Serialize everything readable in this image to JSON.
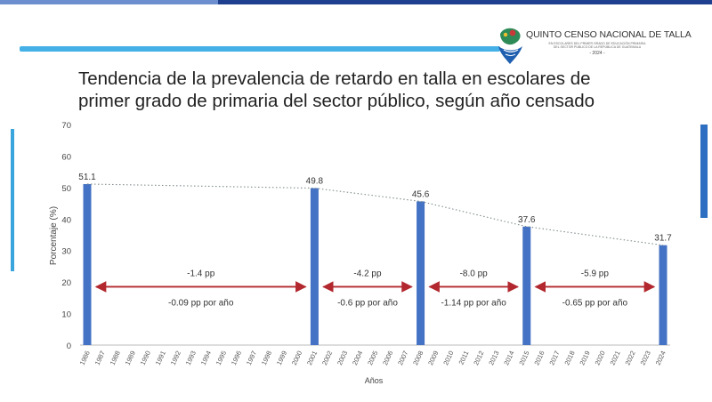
{
  "header": {
    "logo_title": "QUINTO CENSO NACIONAL DE TALLA",
    "logo_subtitle_1": "EN ESCOLARES DEL PRIMER GRADO DE EDUCACIÓN PRIMARIA",
    "logo_subtitle_2": "DEL SECTOR PÚBLICO DE LA REPÚBLICA DE GUATEMALA",
    "logo_year": "- 2024 -",
    "accent_color": "#45b0e6"
  },
  "chart_data": {
    "type": "bar",
    "title_line1": "Tendencia de la prevalencia de retardo en talla en escolares de",
    "title_line2": "primer grado de primaria del sector público, según año censado",
    "xlabel": "Años",
    "ylabel": "Porcentaje (%)",
    "ylim": [
      0,
      70
    ],
    "yticks": [
      "0",
      "10",
      "20",
      "30",
      "40",
      "50",
      "60",
      "70"
    ],
    "categories": [
      "1986",
      "1987",
      "1988",
      "1989",
      "1990",
      "1991",
      "1992",
      "1993",
      "1994",
      "1995",
      "1996",
      "1997",
      "1998",
      "1999",
      "2000",
      "2001",
      "2002",
      "2003",
      "2004",
      "2005",
      "2006",
      "2007",
      "2008",
      "2009",
      "2010",
      "2011",
      "2012",
      "2013",
      "2014",
      "2015",
      "2016",
      "2017",
      "2018",
      "2019",
      "2020",
      "2021",
      "2022",
      "2023",
      "2024"
    ],
    "bars": [
      {
        "year": "1986",
        "value": 51.1,
        "label": "51.1"
      },
      {
        "year": "2001",
        "value": 49.8,
        "label": "49.8"
      },
      {
        "year": "2008",
        "value": 45.6,
        "label": "45.6"
      },
      {
        "year": "2015",
        "value": 37.6,
        "label": "37.6"
      },
      {
        "year": "2024",
        "value": 31.7,
        "label": "31.7"
      }
    ],
    "bar_color": "#4472c4",
    "trend_color": "#7f8c8d",
    "arrow_color": "#b2282e",
    "intervals": [
      {
        "from": "1986",
        "to": "2001",
        "change": "-1.4 pp",
        "rate": "-0.09 pp por año"
      },
      {
        "from": "2001",
        "to": "2008",
        "change": "-4.2 pp",
        "rate": "-0.6 pp por año"
      },
      {
        "from": "2008",
        "to": "2015",
        "change": "-8.0 pp",
        "rate": "-1.14 pp por año"
      },
      {
        "from": "2015",
        "to": "2024",
        "change": "-5.9 pp",
        "rate": "-0.65 pp por año"
      }
    ],
    "arrow_level": 18.5,
    "grid": false
  }
}
